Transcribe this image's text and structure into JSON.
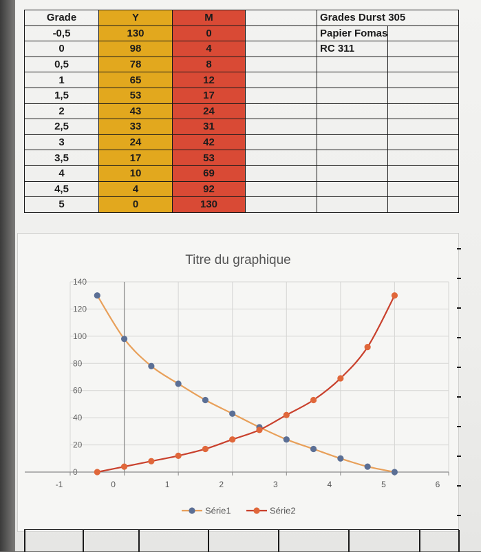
{
  "sheet": {
    "title": "Grades Durst 305",
    "notes": [
      "Papier Fomaspeed",
      "RC 311"
    ],
    "headers": {
      "grade": "Grade",
      "y": "Y",
      "m": "M"
    },
    "rows": [
      {
        "grade": "-0,5",
        "y": "130",
        "m": "0"
      },
      {
        "grade": "0",
        "y": "98",
        "m": "4"
      },
      {
        "grade": "0,5",
        "y": "78",
        "m": "8"
      },
      {
        "grade": "1",
        "y": "65",
        "m": "12"
      },
      {
        "grade": "1,5",
        "y": "53",
        "m": "17"
      },
      {
        "grade": "2",
        "y": "43",
        "m": "24"
      },
      {
        "grade": "2,5",
        "y": "33",
        "m": "31"
      },
      {
        "grade": "3",
        "y": "24",
        "m": "42"
      },
      {
        "grade": "3,5",
        "y": "17",
        "m": "53"
      },
      {
        "grade": "4",
        "y": "10",
        "m": "69"
      },
      {
        "grade": "4,5",
        "y": "4",
        "m": "92"
      },
      {
        "grade": "5",
        "y": "0",
        "m": "130"
      }
    ],
    "colors": {
      "y_column": "#e2a81e",
      "m_column": "#d94a35"
    }
  },
  "chart_data": {
    "type": "line",
    "title": "Titre du graphique",
    "xlabel": "",
    "ylabel": "",
    "xlim": [
      -1,
      6
    ],
    "ylim": [
      0,
      140
    ],
    "x_ticks": [
      "-1",
      "0",
      "1",
      "2",
      "3",
      "4",
      "5",
      "6"
    ],
    "y_ticks": [
      "0",
      "20",
      "40",
      "60",
      "80",
      "100",
      "120",
      "140"
    ],
    "grid": true,
    "legend_position": "bottom",
    "x": [
      -0.5,
      0,
      0.5,
      1,
      1.5,
      2,
      2.5,
      3,
      3.5,
      4,
      4.5,
      5
    ],
    "series": [
      {
        "name": "Série1",
        "line_color": "#e8a05a",
        "marker_color": "#5b6f95",
        "values": [
          130,
          98,
          78,
          65,
          53,
          43,
          33,
          24,
          17,
          10,
          4,
          0
        ]
      },
      {
        "name": "Série2",
        "line_color": "#c9412d",
        "marker_color": "#e0673a",
        "values": [
          0,
          4,
          8,
          12,
          17,
          24,
          31,
          42,
          53,
          69,
          92,
          130
        ]
      }
    ]
  }
}
